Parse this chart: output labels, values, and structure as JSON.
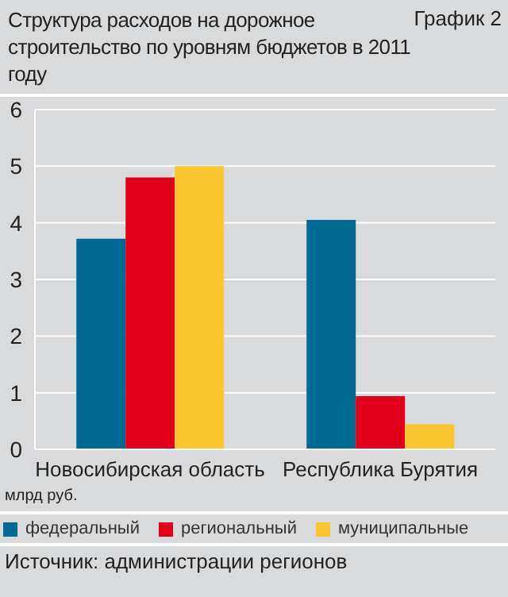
{
  "chart_data": {
    "type": "bar",
    "title": "Структура расходов на дорожное строительство по уровням бюджетов в 2011 году",
    "subtitle": "График 2",
    "ylabel": "млрд руб.",
    "annotations": [
      "Источник: администрации регионов"
    ],
    "categories": [
      "Новосибирская область",
      "Республика Бурятия"
    ],
    "series": [
      {
        "name": "федеральный",
        "color": "#006a94",
        "values": [
          3.72,
          4.05
        ]
      },
      {
        "name": "региональный",
        "color": "#e2001a",
        "values": [
          4.8,
          0.94
        ]
      },
      {
        "name": "муниципальные",
        "color": "#fcc630",
        "values": [
          5.0,
          0.44
        ]
      }
    ],
    "ylim": [
      0,
      6
    ],
    "yticks": [
      0,
      1,
      2,
      3,
      4,
      5,
      6
    ],
    "grid": "y",
    "legend": "bottom"
  }
}
